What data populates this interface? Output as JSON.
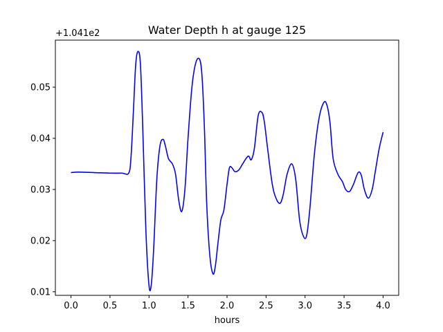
{
  "chart_data": {
    "type": "line",
    "title": "Water Depth h at gauge 125",
    "xlabel": "hours",
    "ylabel": "",
    "y_offset_label": "+1.041e2",
    "xlim": [
      -0.2,
      4.2
    ],
    "ylim": [
      0.0093,
      0.0592
    ],
    "x_ticks": [
      0.0,
      0.5,
      1.0,
      1.5,
      2.0,
      2.5,
      3.0,
      3.5,
      4.0
    ],
    "x_tick_labels": [
      "0.0",
      "0.5",
      "1.0",
      "1.5",
      "2.0",
      "2.5",
      "3.0",
      "3.5",
      "4.0"
    ],
    "y_ticks": [
      0.01,
      0.02,
      0.03,
      0.04,
      0.05
    ],
    "y_tick_labels": [
      "0.01",
      "0.02",
      "0.03",
      "0.04",
      "0.05"
    ],
    "grid": false,
    "series": [
      {
        "name": "",
        "color": "#0000ff",
        "x": [
          0.0,
          0.1,
          0.3,
          0.5,
          0.65,
          0.74,
          0.77,
          0.8,
          0.83,
          0.86,
          0.89,
          0.92,
          0.96,
          1.0,
          1.03,
          1.06,
          1.1,
          1.14,
          1.18,
          1.21,
          1.25,
          1.3,
          1.34,
          1.38,
          1.42,
          1.46,
          1.5,
          1.55,
          1.6,
          1.65,
          1.68,
          1.71,
          1.74,
          1.78,
          1.82,
          1.85,
          1.88,
          1.92,
          1.96,
          2.0,
          2.03,
          2.06,
          2.1,
          2.15,
          2.2,
          2.25,
          2.28,
          2.31,
          2.35,
          2.4,
          2.45,
          2.48,
          2.52,
          2.58,
          2.63,
          2.68,
          2.72,
          2.77,
          2.83,
          2.88,
          2.93,
          2.98,
          3.02,
          3.06,
          3.12,
          3.18,
          3.24,
          3.28,
          3.32,
          3.36,
          3.42,
          3.48,
          3.52,
          3.57,
          3.62,
          3.68,
          3.72,
          3.76,
          3.81,
          3.86,
          3.9,
          3.95,
          4.0
        ],
        "values": [
          0.0333,
          0.0334,
          0.0333,
          0.0332,
          0.0332,
          0.0332,
          0.0365,
          0.0453,
          0.0545,
          0.057,
          0.0545,
          0.042,
          0.022,
          0.0112,
          0.0115,
          0.0185,
          0.032,
          0.0385,
          0.0398,
          0.0385,
          0.036,
          0.035,
          0.033,
          0.028,
          0.0257,
          0.03,
          0.04,
          0.05,
          0.0548,
          0.0554,
          0.052,
          0.042,
          0.027,
          0.017,
          0.0135,
          0.015,
          0.019,
          0.024,
          0.026,
          0.031,
          0.0342,
          0.0343,
          0.0335,
          0.0338,
          0.035,
          0.0362,
          0.0365,
          0.0358,
          0.038,
          0.0445,
          0.045,
          0.043,
          0.038,
          0.031,
          0.0282,
          0.0273,
          0.029,
          0.033,
          0.035,
          0.032,
          0.024,
          0.0208,
          0.021,
          0.026,
          0.037,
          0.044,
          0.047,
          0.0465,
          0.043,
          0.036,
          0.033,
          0.0315,
          0.03,
          0.0296,
          0.031,
          0.0333,
          0.0328,
          0.03,
          0.0283,
          0.03,
          0.0335,
          0.038,
          0.0412
        ]
      }
    ]
  }
}
